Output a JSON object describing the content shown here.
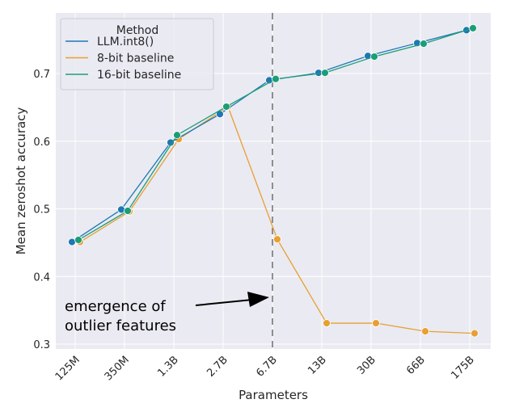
{
  "chart_data": {
    "type": "line",
    "xlabel": "Parameters",
    "ylabel": "Mean zeroshot accuracy",
    "categories": [
      "125M",
      "350M",
      "1.3B",
      "2.7B",
      "6.7B",
      "13B",
      "30B",
      "66B",
      "175B"
    ],
    "ylim": [
      0.28,
      0.79
    ],
    "yticks": [
      0.3,
      0.4,
      0.5,
      0.6,
      0.7
    ],
    "grid": true,
    "legend": {
      "title": "Method",
      "placement": "top-left"
    },
    "series": [
      {
        "name": "LLM.int8()",
        "color": "#1f77b4",
        "values": [
          0.451,
          0.499,
          0.598,
          0.64,
          0.69,
          0.701,
          0.726,
          0.745,
          0.764
        ]
      },
      {
        "name": "8-bit baseline",
        "color": "#e8a033",
        "values": [
          0.451,
          0.496,
          0.603,
          0.651,
          0.455,
          0.331,
          0.331,
          0.319,
          0.316
        ]
      },
      {
        "name": "16-bit baseline",
        "color": "#1b9e77",
        "values": [
          0.454,
          0.497,
          0.609,
          0.651,
          0.692,
          0.701,
          0.725,
          0.744,
          0.767
        ]
      }
    ],
    "vline": {
      "category": "6.7B",
      "color": "#707070"
    },
    "annotation": {
      "lines": [
        "emergence of",
        "outlier features"
      ]
    }
  }
}
